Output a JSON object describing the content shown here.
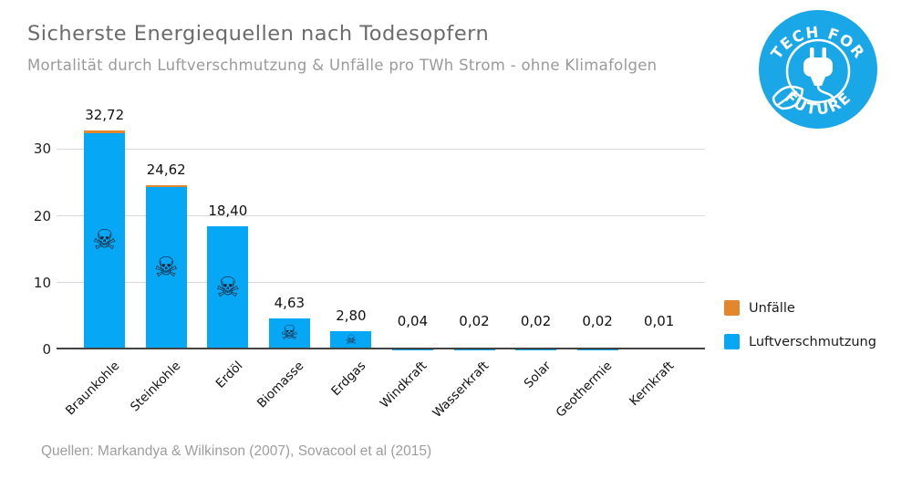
{
  "title": "Sicherste Energiequellen nach Todesopfern",
  "subtitle": "Mortalität durch Luftverschmutzung & Unfälle pro TWh Strom - ohne Klimafolgen",
  "logo": {
    "arc_top": "TECH FOR",
    "arc_bottom": "FUTURE",
    "color": "#1aa7e8"
  },
  "legend": {
    "items": [
      {
        "label": "Unfälle",
        "color": "#e2872e"
      },
      {
        "label": "Luftverschmutzung",
        "color": "#06a7f4"
      }
    ]
  },
  "footer": {
    "source": "Quellen: Markandya & Wilkinson (2007), Sovacool et al (2015)"
  },
  "chart_data": {
    "type": "bar",
    "stacked": true,
    "title": "Sicherste Energiequellen nach Todesopfern",
    "subtitle": "Mortalität durch Luftverschmutzung & Unfälle pro TWh Strom - ohne Klimafolgen",
    "categories": [
      "Braunkohle",
      "Steinkohle",
      "Erdöl",
      "Biomasse",
      "Erdgas",
      "Windkraft",
      "Wasserkraft",
      "Solar",
      "Geothermie",
      "Kernkraft"
    ],
    "series": [
      {
        "name": "Luftverschmutzung",
        "color": "#06a7f4",
        "values": [
          32.42,
          24.32,
          18.4,
          4.63,
          2.8,
          0.04,
          0.02,
          0.02,
          0.02,
          0.01
        ]
      },
      {
        "name": "Unfälle",
        "color": "#e2872e",
        "values": [
          0.3,
          0.3,
          0,
          0,
          0,
          0,
          0,
          0,
          0,
          0
        ]
      }
    ],
    "totals": [
      32.72,
      24.62,
      18.4,
      4.63,
      2.8,
      0.04,
      0.02,
      0.02,
      0.02,
      0.01
    ],
    "total_labels": [
      "32,72",
      "24,62",
      "18,40",
      "4,63",
      "2,80",
      "0,04",
      "0,02",
      "0,02",
      "0,02",
      "0,01"
    ],
    "yticks": [
      0,
      10,
      20,
      30
    ],
    "ylim": [
      0,
      33.5
    ],
    "xlabel": "",
    "ylabel": "",
    "grid": true,
    "legend_position": "right",
    "bar_icon": "skull-and-crossbones",
    "bar_icon_char": "☠"
  }
}
